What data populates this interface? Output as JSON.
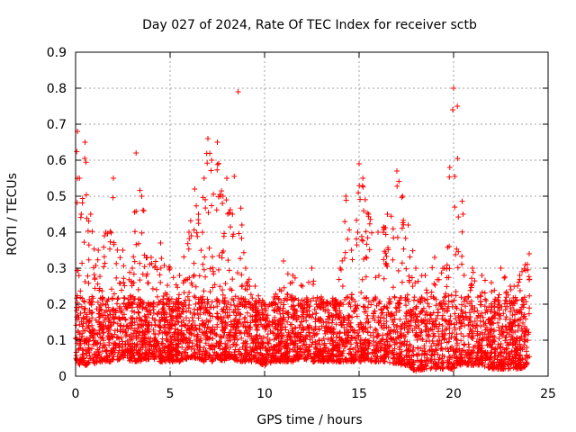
{
  "chart_data": {
    "type": "scatter",
    "title": "Day 027 of 2024, Rate Of TEC Index for receiver sctb",
    "xlabel": "GPS time / hours",
    "ylabel": "ROTI / TECUs",
    "xlim": [
      0,
      25
    ],
    "ylim": [
      0,
      0.9
    ],
    "xticks": [
      "0",
      "5",
      "10",
      "15",
      "20",
      "25"
    ],
    "yticks": [
      "0",
      "0.1",
      "0.2",
      "0.3",
      "0.4",
      "0.5",
      "0.6",
      "0.7",
      "0.8",
      "0.9"
    ],
    "grid": true,
    "marker": "+",
    "color": "#ff0000",
    "x": [
      0.1,
      0.2,
      0.3,
      0.5,
      0.8,
      1.2,
      1.6,
      2.0,
      2.5,
      3.0,
      3.2,
      3.5,
      4.0,
      4.5,
      5.0,
      5.5,
      6.0,
      6.3,
      6.5,
      6.8,
      7.0,
      7.2,
      7.5,
      7.8,
      8.0,
      8.3,
      8.6,
      8.8,
      9.0,
      9.5,
      10.0,
      10.5,
      11.0,
      11.5,
      12.0,
      12.5,
      13.0,
      13.5,
      14.0,
      14.3,
      14.6,
      15.0,
      15.2,
      15.5,
      16.0,
      16.5,
      17.0,
      17.3,
      17.6,
      18.0,
      18.5,
      19.0,
      19.5,
      19.8,
      20.0,
      20.2,
      20.5,
      21.0,
      21.5,
      22.0,
      22.5,
      23.0,
      23.5,
      24.0
    ],
    "y": [
      0.68,
      0.55,
      0.45,
      0.65,
      0.45,
      0.35,
      0.4,
      0.55,
      0.35,
      0.3,
      0.62,
      0.5,
      0.33,
      0.37,
      0.3,
      0.28,
      0.4,
      0.52,
      0.45,
      0.55,
      0.66,
      0.6,
      0.65,
      0.5,
      0.55,
      0.45,
      0.79,
      0.42,
      0.3,
      0.25,
      0.2,
      0.22,
      0.32,
      0.28,
      0.25,
      0.3,
      0.22,
      0.2,
      0.3,
      0.5,
      0.35,
      0.59,
      0.55,
      0.45,
      0.4,
      0.45,
      0.57,
      0.5,
      0.42,
      0.3,
      0.28,
      0.33,
      0.3,
      0.58,
      0.8,
      0.75,
      0.45,
      0.3,
      0.28,
      0.26,
      0.3,
      0.25,
      0.28,
      0.34
    ],
    "y_floor": [
      0.03,
      0.03,
      0.04,
      0.03,
      0.03,
      0.04,
      0.04,
      0.04,
      0.05,
      0.04,
      0.04,
      0.04,
      0.05,
      0.04,
      0.04,
      0.04,
      0.05,
      0.05,
      0.05,
      0.04,
      0.05,
      0.04,
      0.05,
      0.04,
      0.05,
      0.05,
      0.04,
      0.04,
      0.04,
      0.04,
      0.03,
      0.04,
      0.04,
      0.04,
      0.05,
      0.04,
      0.04,
      0.04,
      0.04,
      0.04,
      0.04,
      0.04,
      0.04,
      0.04,
      0.04,
      0.04,
      0.03,
      0.03,
      0.03,
      0.01,
      0.02,
      0.02,
      0.02,
      0.02,
      0.02,
      0.03,
      0.03,
      0.03,
      0.03,
      0.02,
      0.02,
      0.02,
      0.02,
      0.03
    ]
  }
}
